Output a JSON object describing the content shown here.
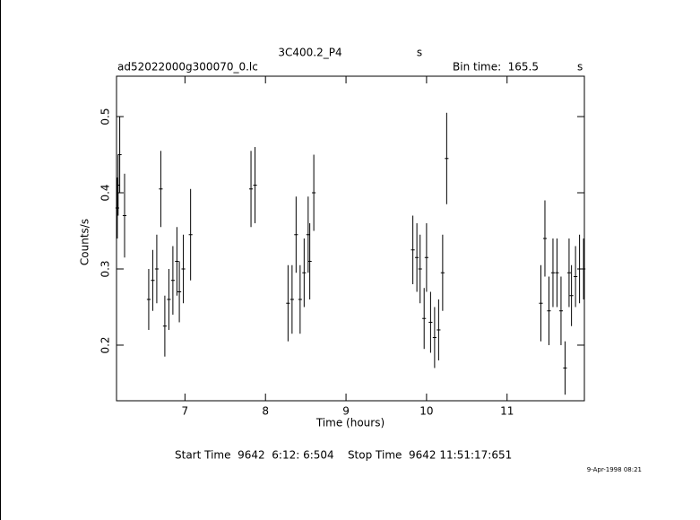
{
  "chart_data": {
    "type": "errorbar",
    "title": "3C400.2_P4",
    "title_unit": "s",
    "subtitle": "ad52022000g300070_0.lc",
    "bin_time_label": "Bin time:",
    "bin_time": 165.5,
    "bin_time_unit": "s",
    "xlabel": "Time (hours)",
    "ylabel": "Counts/s",
    "footer": "Start Time  9642  6:12: 6:504    Stop Time  9642 11:51:17:651",
    "date": "9-Apr-1998 08:21",
    "color": "#000000",
    "xlim": [
      6.15,
      11.96
    ],
    "ylim": [
      0.127,
      0.553
    ],
    "xticks": [
      7,
      8,
      9,
      10,
      11
    ],
    "yticks": [
      0.2,
      0.3,
      0.4,
      0.5
    ],
    "x": [
      6.16,
      6.17,
      6.19,
      6.25,
      6.55,
      6.6,
      6.65,
      6.7,
      6.75,
      6.8,
      6.85,
      6.9,
      6.93,
      6.98,
      7.07,
      7.82,
      7.87,
      8.28,
      8.33,
      8.38,
      8.43,
      8.48,
      8.53,
      8.55,
      8.6,
      9.83,
      9.88,
      9.92,
      9.97,
      10.0,
      10.05,
      10.1,
      10.15,
      10.2,
      10.25,
      11.42,
      11.47,
      11.52,
      11.57,
      11.62,
      11.67,
      11.72,
      11.77,
      11.8,
      11.85,
      11.9,
      11.95
    ],
    "values": [
      0.38,
      0.41,
      0.45,
      0.37,
      0.26,
      0.285,
      0.3,
      0.405,
      0.225,
      0.26,
      0.285,
      0.31,
      0.27,
      0.3,
      0.345,
      0.405,
      0.41,
      0.255,
      0.26,
      0.345,
      0.26,
      0.295,
      0.345,
      0.31,
      0.4,
      0.325,
      0.315,
      0.3,
      0.235,
      0.315,
      0.23,
      0.21,
      0.22,
      0.295,
      0.445,
      0.255,
      0.34,
      0.245,
      0.295,
      0.295,
      0.245,
      0.17,
      0.295,
      0.265,
      0.29,
      0.3,
      0.3
    ],
    "errors": [
      0.04,
      0.04,
      0.05,
      0.055,
      0.04,
      0.04,
      0.045,
      0.05,
      0.04,
      0.04,
      0.045,
      0.045,
      0.04,
      0.045,
      0.06,
      0.05,
      0.05,
      0.05,
      0.045,
      0.05,
      0.045,
      0.045,
      0.05,
      0.05,
      0.05,
      0.045,
      0.045,
      0.045,
      0.04,
      0.045,
      0.04,
      0.04,
      0.04,
      0.05,
      0.06,
      0.05,
      0.05,
      0.045,
      0.045,
      0.045,
      0.045,
      0.035,
      0.045,
      0.04,
      0.04,
      0.045,
      0.04
    ]
  }
}
